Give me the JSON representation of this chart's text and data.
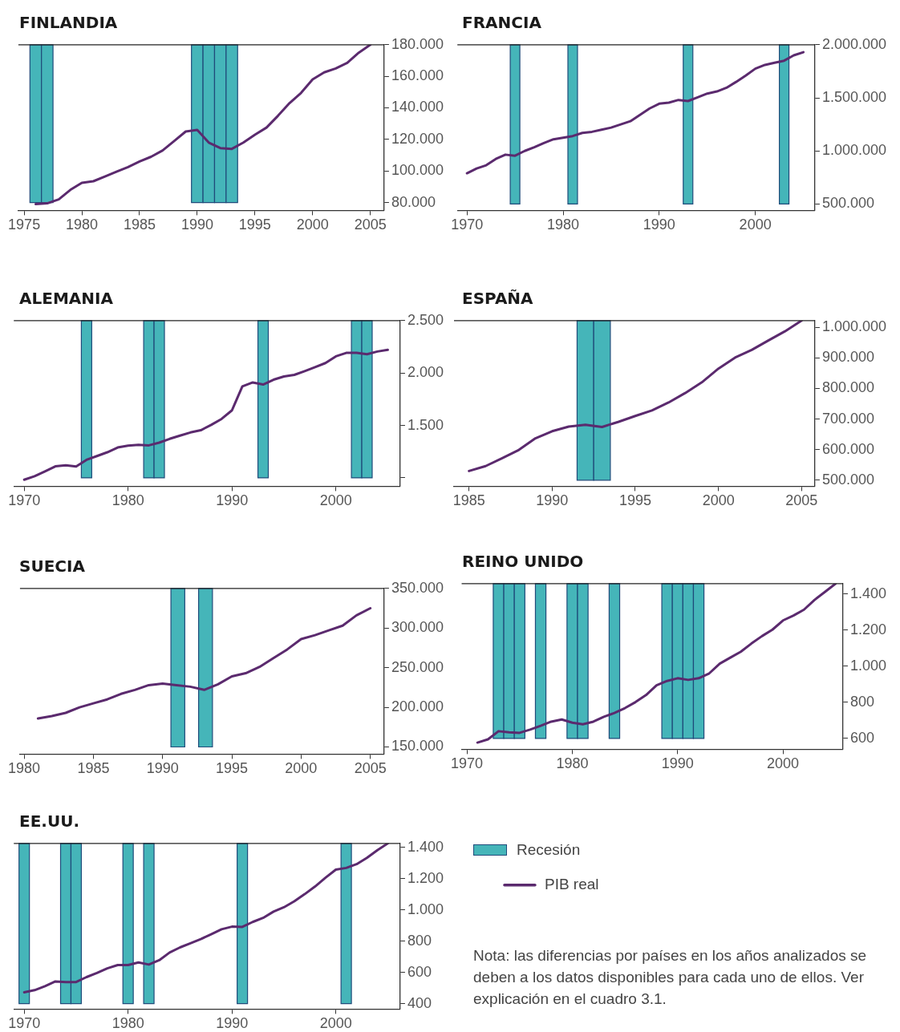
{
  "chart_data": [
    {
      "type": "line",
      "title": "FINLANDIA",
      "xlim": [
        1974.5,
        2006.2
      ],
      "xticks": [
        1975,
        1980,
        1985,
        1990,
        1995,
        2000,
        2005
      ],
      "ylim": [
        75000,
        180000
      ],
      "yticks": [
        {
          "value": 80000,
          "label": "80.000"
        },
        {
          "value": 100000,
          "label": "100.000"
        },
        {
          "value": 120000,
          "label": "120.000"
        },
        {
          "value": 140000,
          "label": "140.000"
        },
        {
          "value": 160000,
          "label": "160.000"
        },
        {
          "value": 180000,
          "label": "180.000"
        }
      ],
      "series": [
        {
          "color": "#5b2a6e",
          "x": [
            1976,
            1977,
            1978,
            1979,
            1980,
            1981,
            1982,
            1983,
            1984,
            1985,
            1986,
            1987,
            1988,
            1989,
            1990,
            1991,
            1992,
            1993,
            1994,
            1995,
            1996,
            1997,
            1998,
            1999,
            2000,
            2001,
            2002,
            2003,
            2004,
            2005
          ],
          "values": [
            79000,
            79500,
            82000,
            88000,
            92500,
            93500,
            96500,
            99500,
            102500,
            106000,
            109000,
            113000,
            119000,
            125000,
            126000,
            118000,
            114500,
            114000,
            118000,
            123000,
            127500,
            135000,
            143000,
            149500,
            158000,
            162500,
            165000,
            168500,
            175000,
            180000
          ]
        }
      ],
      "bands": [
        {
          "axis": "x",
          "from": 1975.5,
          "to": 1976.5,
          "color": "#45b5b9"
        },
        {
          "axis": "x",
          "from": 1976.5,
          "to": 1977.5,
          "color": "#45b5b9"
        },
        {
          "axis": "x",
          "from": 1989.5,
          "to": 1990.5,
          "color": "#45b5b9"
        },
        {
          "axis": "x",
          "from": 1990.5,
          "to": 1991.5,
          "color": "#45b5b9"
        },
        {
          "axis": "x",
          "from": 1991.5,
          "to": 1992.5,
          "color": "#45b5b9"
        },
        {
          "axis": "x",
          "from": 1992.5,
          "to": 1993.5,
          "color": "#45b5b9"
        }
      ],
      "grid": false
    },
    {
      "type": "line",
      "title": "FRANCIA",
      "xlim": [
        1969,
        2006.2
      ],
      "xticks": [
        1970,
        1980,
        1990,
        2000
      ],
      "ylim": [
        440000,
        2000000
      ],
      "yticks": [
        {
          "value": 500000,
          "label": "500.000"
        },
        {
          "value": 1000000,
          "label": "1.000.000"
        },
        {
          "value": 1500000,
          "label": "1.500.000"
        },
        {
          "value": 2000000,
          "label": "2.000.000"
        }
      ],
      "series": [
        {
          "color": "#5b2a6e",
          "x": [
            1970,
            1971,
            1972,
            1973,
            1974,
            1975,
            1976,
            1977,
            1978,
            1979,
            1980,
            1981,
            1982,
            1983,
            1984,
            1985,
            1986,
            1987,
            1988,
            1989,
            1990,
            1991,
            1992,
            1993,
            1994,
            1995,
            1996,
            1997,
            1998,
            1999,
            2000,
            2001,
            2002,
            2003,
            2004,
            2005
          ],
          "values": [
            790000,
            835000,
            865000,
            925000,
            965000,
            955000,
            1000000,
            1035000,
            1075000,
            1110000,
            1125000,
            1140000,
            1170000,
            1180000,
            1200000,
            1220000,
            1250000,
            1280000,
            1340000,
            1400000,
            1445000,
            1455000,
            1480000,
            1470000,
            1505000,
            1540000,
            1560000,
            1595000,
            1650000,
            1710000,
            1775000,
            1810000,
            1830000,
            1850000,
            1900000,
            1930000
          ]
        }
      ],
      "bands": [
        {
          "axis": "x",
          "from": 1974.5,
          "to": 1975.5,
          "color": "#45b5b9"
        },
        {
          "axis": "x",
          "from": 1980.5,
          "to": 1981.5,
          "color": "#45b5b9"
        },
        {
          "axis": "x",
          "from": 1992.5,
          "to": 1993.5,
          "color": "#45b5b9"
        },
        {
          "axis": "x",
          "from": 2002.5,
          "to": 2003.5,
          "color": "#45b5b9"
        }
      ],
      "grid": false
    },
    {
      "type": "line",
      "title": "ALEMANIA",
      "xlim": [
        1969,
        2006.2
      ],
      "xticks": [
        1970,
        1980,
        1990,
        2000
      ],
      "ylim": [
        920,
        2500
      ],
      "yticks": [
        {
          "value": 1000,
          "label": null
        },
        {
          "value": 1500,
          "label": "1.500"
        },
        {
          "value": 2000,
          "label": "2.000"
        },
        {
          "value": 2500,
          "label": "2.500"
        }
      ],
      "series": [
        {
          "color": "#5b2a6e",
          "x": [
            1970,
            1971,
            1972,
            1973,
            1974,
            1975,
            1976,
            1977,
            1978,
            1979,
            1980,
            1981,
            1982,
            1983,
            1984,
            1985,
            1986,
            1987,
            1988,
            1989,
            1990,
            1991,
            1992,
            1993,
            1994,
            1995,
            1996,
            1997,
            1998,
            1999,
            2000,
            2001,
            2002,
            2003,
            2004,
            2005
          ],
          "values": [
            982,
            1016,
            1062,
            1110,
            1120,
            1108,
            1172,
            1208,
            1244,
            1290,
            1308,
            1315,
            1310,
            1336,
            1372,
            1403,
            1433,
            1454,
            1505,
            1562,
            1644,
            1872,
            1910,
            1890,
            1936,
            1967,
            1982,
            2018,
            2056,
            2095,
            2159,
            2192,
            2192,
            2179,
            2205,
            2221
          ]
        }
      ],
      "bands": [
        {
          "axis": "x",
          "from": 1975.5,
          "to": 1976.5,
          "color": "#45b5b9"
        },
        {
          "axis": "x",
          "from": 1981.5,
          "to": 1982.5,
          "color": "#45b5b9"
        },
        {
          "axis": "x",
          "from": 1982.5,
          "to": 1983.5,
          "color": "#45b5b9"
        },
        {
          "axis": "x",
          "from": 1992.5,
          "to": 1993.5,
          "color": "#45b5b9"
        },
        {
          "axis": "x",
          "from": 2001.5,
          "to": 2002.5,
          "color": "#45b5b9"
        },
        {
          "axis": "x",
          "from": 2002.5,
          "to": 2003.5,
          "color": "#45b5b9"
        }
      ],
      "grid": false
    },
    {
      "type": "line",
      "title": "ESPAÑA",
      "xlim": [
        1984.1,
        2005.8
      ],
      "xticks": [
        1985,
        1990,
        1995,
        2000,
        2005
      ],
      "ylim": [
        480000,
        1022000
      ],
      "yticks": [
        {
          "value": 500000,
          "label": "500.000"
        },
        {
          "value": 600000,
          "label": "600.000"
        },
        {
          "value": 700000,
          "label": "700.000"
        },
        {
          "value": 800000,
          "label": "800.000"
        },
        {
          "value": 900000,
          "label": "900.000"
        },
        {
          "value": 1000000,
          "label": "1.000.000"
        }
      ],
      "series": [
        {
          "color": "#5b2a6e",
          "x": [
            1985,
            1986,
            1987,
            1988,
            1989,
            1990,
            1991,
            1992,
            1993,
            1994,
            1995,
            1996,
            1997,
            1998,
            1999,
            2000,
            2001,
            2002,
            2003,
            2004,
            2005
          ],
          "values": [
            530000,
            546000,
            572000,
            599000,
            637000,
            660000,
            675000,
            681000,
            674000,
            691000,
            710000,
            728000,
            754000,
            785000,
            820000,
            865000,
            901000,
            926000,
            957000,
            987000,
            1022000
          ]
        }
      ],
      "bands": [
        {
          "axis": "x",
          "from": 1991.5,
          "to": 1992.5,
          "color": "#45b5b9"
        },
        {
          "axis": "x",
          "from": 1992.5,
          "to": 1993.5,
          "color": "#45b5b9"
        }
      ],
      "grid": false
    },
    {
      "type": "line",
      "title": "SUECIA",
      "xlim": [
        1979.7,
        2006
      ],
      "xticks": [
        1980,
        1985,
        1990,
        1995,
        2000,
        2005
      ],
      "ylim": [
        141000,
        350000
      ],
      "yticks": [
        {
          "value": 150000,
          "label": "150.000"
        },
        {
          "value": 200000,
          "label": "200.000"
        },
        {
          "value": 250000,
          "label": "250.000"
        },
        {
          "value": 300000,
          "label": "300.000"
        },
        {
          "value": 350000,
          "label": "350.000"
        }
      ],
      "series": [
        {
          "color": "#5b2a6e",
          "x": [
            1981,
            1982,
            1983,
            1984,
            1985,
            1986,
            1987,
            1988,
            1989,
            1990,
            1991,
            1992,
            1993,
            1994,
            1995,
            1996,
            1997,
            1998,
            1999,
            2000,
            2001,
            2002,
            2003,
            2004,
            2005
          ],
          "values": [
            186000,
            189000,
            193000,
            200000,
            205000,
            210000,
            217000,
            222000,
            228000,
            230000,
            228000,
            226000,
            222000,
            229000,
            239000,
            243000,
            251000,
            262000,
            273000,
            286000,
            291000,
            297000,
            303000,
            316000,
            325000
          ]
        }
      ],
      "bands": [
        {
          "axis": "x",
          "from": 1990.6,
          "to": 1991.6,
          "color": "#45b5b9"
        },
        {
          "axis": "x",
          "from": 1992.6,
          "to": 1993.6,
          "color": "#45b5b9"
        }
      ],
      "grid": false
    },
    {
      "type": "line",
      "title": "REINO UNIDO",
      "xlim": [
        1969.5,
        2005.7
      ],
      "xticks": [
        1970,
        1980,
        1990,
        2000
      ],
      "ylim": [
        540,
        1457
      ],
      "yticks": [
        {
          "value": 600,
          "label": "600"
        },
        {
          "value": 800,
          "label": "800"
        },
        {
          "value": 1000,
          "label": "1.000"
        },
        {
          "value": 1200,
          "label": "1.200"
        },
        {
          "value": 1400,
          "label": "1.400"
        }
      ],
      "series": [
        {
          "color": "#5b2a6e",
          "x": [
            1971,
            1972,
            1973,
            1974,
            1975,
            1976,
            1977,
            1978,
            1979,
            1980,
            1981,
            1982,
            1983,
            1984,
            1985,
            1986,
            1987,
            1988,
            1989,
            1990,
            1991,
            1992,
            1993,
            1994,
            1995,
            1996,
            1997,
            1998,
            1999,
            2000,
            2001,
            2002,
            2003,
            2004,
            2005
          ],
          "values": [
            577,
            595,
            640,
            634,
            631,
            649,
            670,
            693,
            705,
            687,
            678,
            693,
            720,
            741,
            768,
            801,
            840,
            894,
            918,
            933,
            924,
            933,
            960,
            1014,
            1047,
            1080,
            1125,
            1166,
            1202,
            1253,
            1280,
            1313,
            1367,
            1412,
            1457
          ]
        }
      ],
      "bands": [
        {
          "axis": "x",
          "from": 1972.5,
          "to": 1973.5,
          "color": "#45b5b9"
        },
        {
          "axis": "x",
          "from": 1973.5,
          "to": 1974.5,
          "color": "#45b5b9"
        },
        {
          "axis": "x",
          "from": 1974.5,
          "to": 1975.5,
          "color": "#45b5b9"
        },
        {
          "axis": "x",
          "from": 1976.5,
          "to": 1977.5,
          "color": "#45b5b9"
        },
        {
          "axis": "x",
          "from": 1979.5,
          "to": 1980.5,
          "color": "#45b5b9"
        },
        {
          "axis": "x",
          "from": 1980.5,
          "to": 1981.5,
          "color": "#45b5b9"
        },
        {
          "axis": "x",
          "from": 1983.5,
          "to": 1984.5,
          "color": "#45b5b9"
        },
        {
          "axis": "x",
          "from": 1988.5,
          "to": 1989.5,
          "color": "#45b5b9"
        },
        {
          "axis": "x",
          "from": 1989.5,
          "to": 1990.5,
          "color": "#45b5b9"
        },
        {
          "axis": "x",
          "from": 1990.5,
          "to": 1991.5,
          "color": "#45b5b9"
        },
        {
          "axis": "x",
          "from": 1991.5,
          "to": 1992.5,
          "color": "#45b5b9"
        }
      ],
      "grid": false
    },
    {
      "type": "line",
      "title": "EE.UU.",
      "xlim": [
        1969,
        2006.2
      ],
      "xticks": [
        1970,
        1980,
        1990,
        2000
      ],
      "ylim": [
        365,
        1426
      ],
      "yticks": [
        {
          "value": 400,
          "label": "400"
        },
        {
          "value": 600,
          "label": "600"
        },
        {
          "value": 800,
          "label": "800"
        },
        {
          "value": 1000,
          "label": "1.000"
        },
        {
          "value": 1200,
          "label": "1.200"
        },
        {
          "value": 1400,
          "label": "1.400"
        }
      ],
      "series": [
        {
          "name": "PIB real",
          "color": "#5b2a6e",
          "x": [
            1970,
            1971,
            1972,
            1973,
            1974,
            1975,
            1976,
            1977,
            1978,
            1979,
            1980,
            1981,
            1982,
            1983,
            1984,
            1985,
            1986,
            1987,
            1988,
            1989,
            1990,
            1991,
            1992,
            1993,
            1994,
            1995,
            1996,
            1997,
            1998,
            1999,
            2000,
            2001,
            2002,
            2003,
            2004,
            2005
          ],
          "values": [
            472,
            486,
            512,
            542,
            538,
            538,
            570,
            596,
            626,
            647,
            647,
            664,
            650,
            678,
            727,
            760,
            786,
            813,
            844,
            876,
            893,
            891,
            923,
            949,
            989,
            1017,
            1055,
            1101,
            1150,
            1206,
            1258,
            1269,
            1293,
            1334,
            1383,
            1426
          ]
        }
      ],
      "bands": [
        {
          "axis": "x",
          "from": 1969.5,
          "to": 1970.5,
          "color": "#45b5b9"
        },
        {
          "axis": "x",
          "from": 1973.5,
          "to": 1974.5,
          "color": "#45b5b9"
        },
        {
          "axis": "x",
          "from": 1974.5,
          "to": 1975.5,
          "color": "#45b5b9"
        },
        {
          "axis": "x",
          "from": 1979.5,
          "to": 1980.5,
          "color": "#45b5b9"
        },
        {
          "axis": "x",
          "from": 1981.5,
          "to": 1982.5,
          "color": "#45b5b9"
        },
        {
          "axis": "x",
          "from": 1990.5,
          "to": 1991.5,
          "color": "#45b5b9"
        },
        {
          "axis": "x",
          "from": 2000.5,
          "to": 2001.5,
          "color": "#45b5b9"
        }
      ],
      "grid": false,
      "legend": "right",
      "annotations": [
        "Recesión",
        "Nota: las diferencias por países en los años analizados se deben a los datos disponibles para cada uno de ellos. Ver explicación en el cuadro 3.1."
      ]
    }
  ]
}
